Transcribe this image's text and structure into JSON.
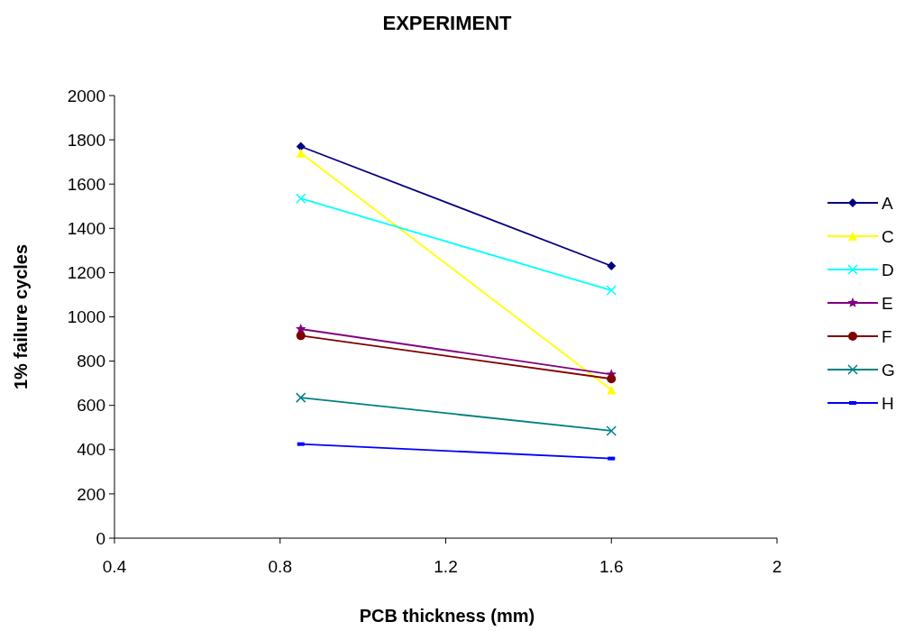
{
  "chart_data": {
    "type": "line",
    "title": "EXPERIMENT",
    "xlabel": "PCB thickness (mm)",
    "ylabel": "1% failure cycles",
    "xlim": [
      0.4,
      2
    ],
    "xticks": [
      0.4,
      0.8,
      1.2,
      1.6,
      2
    ],
    "ylim": [
      0,
      2000
    ],
    "yticks": [
      0,
      200,
      400,
      600,
      800,
      1000,
      1200,
      1400,
      1600,
      1800,
      2000
    ],
    "grid": false,
    "legend": "right",
    "x": [
      0.85,
      1.6
    ],
    "series": [
      {
        "name": "A",
        "color": "#000080",
        "marker": "diamond",
        "values": [
          1770,
          1230
        ]
      },
      {
        "name": "C",
        "color": "#ffff00",
        "marker": "triangle",
        "values": [
          1740,
          670
        ]
      },
      {
        "name": "D",
        "color": "#00ffff",
        "marker": "cross",
        "values": [
          1535,
          1120
        ]
      },
      {
        "name": "E",
        "color": "#800080",
        "marker": "star",
        "values": [
          945,
          740
        ]
      },
      {
        "name": "F",
        "color": "#800000",
        "marker": "circle",
        "values": [
          915,
          720
        ]
      },
      {
        "name": "G",
        "color": "#008080",
        "marker": "cross",
        "values": [
          635,
          485
        ]
      },
      {
        "name": "H",
        "color": "#0000ff",
        "marker": "square",
        "values": [
          425,
          360
        ]
      }
    ]
  }
}
